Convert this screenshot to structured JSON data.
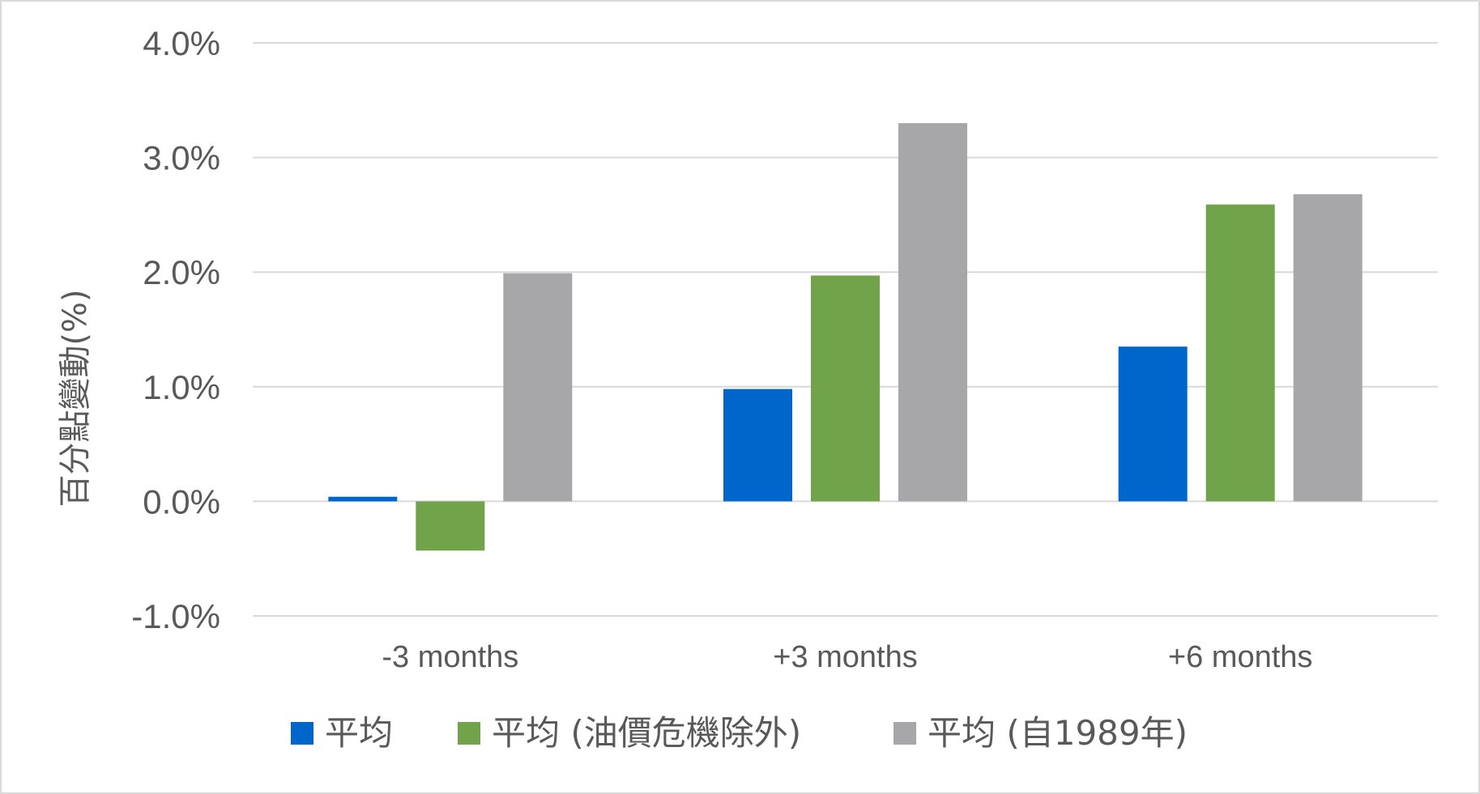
{
  "chart_data": {
    "type": "bar",
    "categories": [
      "-3 months",
      "+3 months",
      "+6 months"
    ],
    "series": [
      {
        "name": "平均",
        "values": [
          0.04,
          0.98,
          1.35
        ],
        "color": "#0066CC"
      },
      {
        "name": "平均 (油價危機除外)",
        "values": [
          -0.43,
          1.97,
          2.59
        ],
        "color": "#70A34A"
      },
      {
        "name": "平均 (自1989年)",
        "values": [
          1.99,
          3.3,
          2.68
        ],
        "color": "#A7A6A9"
      }
    ],
    "ylabel": "百分點變動(%)",
    "ylim": [
      -1.0,
      4.0
    ],
    "yticks": [
      -1.0,
      0.0,
      1.0,
      2.0,
      3.0,
      4.0
    ],
    "ytick_labels": [
      "-1.0%",
      "0.0%",
      "1.0%",
      "2.0%",
      "3.0%",
      "4.0%"
    ],
    "grid": true,
    "legend_position": "bottom",
    "colors": {
      "gridline": "#d9d9d9",
      "text": "#595959",
      "border": "#d9d9d9"
    }
  }
}
